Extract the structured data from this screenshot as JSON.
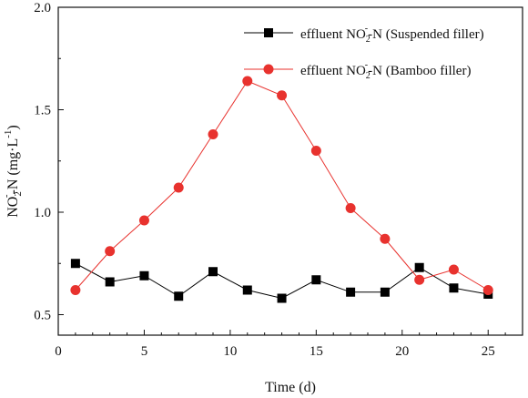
{
  "chart_data": {
    "type": "line",
    "xlabel": "Time (d)",
    "ylabel": {
      "main": "NO",
      "sub": "2",
      "sup": "-",
      "rest": "-N (mg·L",
      "unit_sup": "-1",
      "end": ")"
    },
    "xlim": [
      0,
      27
    ],
    "ylim": [
      0.4,
      2.0
    ],
    "xticks": [
      "0",
      "5",
      "10",
      "15",
      "20",
      "25"
    ],
    "yticks": [
      "0.5",
      "1.0",
      "1.5",
      "2.0"
    ],
    "grid": false,
    "legend_position": "top-right",
    "series": [
      {
        "name": {
          "pre": "effluent NO",
          "sub": "2",
          "sup": "-",
          "post": "-N (Suspended filler)"
        },
        "marker": "square",
        "color": "#000000",
        "x": [
          1,
          3,
          5,
          7,
          9,
          11,
          13,
          15,
          17,
          19,
          21,
          23,
          25
        ],
        "y": [
          0.75,
          0.66,
          0.69,
          0.59,
          0.71,
          0.62,
          0.58,
          0.67,
          0.61,
          0.61,
          0.73,
          0.63,
          0.6
        ]
      },
      {
        "name": {
          "pre": "effluent NO",
          "sub": "2",
          "sup": "-",
          "post": "-N (Bamboo filler)"
        },
        "marker": "circle",
        "color": "#e8322e",
        "x": [
          1,
          3,
          5,
          7,
          9,
          11,
          13,
          15,
          17,
          19,
          21,
          23,
          25
        ],
        "y": [
          0.62,
          0.81,
          0.96,
          1.12,
          1.38,
          1.64,
          1.57,
          1.3,
          1.02,
          0.87,
          0.67,
          0.72,
          0.62
        ]
      }
    ]
  }
}
